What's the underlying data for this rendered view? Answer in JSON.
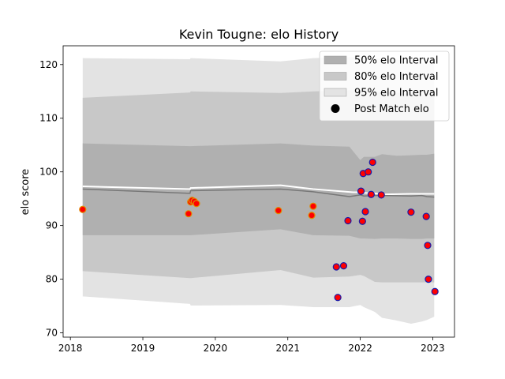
{
  "chart_data": {
    "type": "scatter",
    "title": "Kevin Tougne: elo History",
    "xlabel": "",
    "ylabel": "elo score",
    "xlim": [
      2017.9,
      2023.3
    ],
    "ylim": [
      69.2,
      123.5
    ],
    "x_ticks": [
      2018,
      2019,
      2020,
      2021,
      2022,
      2023
    ],
    "x_tick_labels": [
      "2018",
      "2019",
      "2020",
      "2021",
      "2022",
      "2023"
    ],
    "y_ticks": [
      70,
      80,
      90,
      100,
      110,
      120
    ],
    "y_tick_labels": [
      "70",
      "80",
      "90",
      "100",
      "110",
      "120"
    ],
    "grid": false,
    "legend_position": "top-right",
    "legend": [
      {
        "label": "50% elo Interval",
        "kind": "patch",
        "color": "#b0b0b0"
      },
      {
        "label": "80% elo Interval",
        "kind": "patch",
        "color": "#c8c8c8"
      },
      {
        "label": "95% elo Interval",
        "kind": "patch",
        "color": "#e3e3e3"
      },
      {
        "label": "Post Match elo",
        "kind": "marker",
        "color": "#000000"
      }
    ],
    "bands": [
      {
        "name": "95% elo Interval",
        "color": "#e3e3e3",
        "x": [
          2018.17,
          2019.65,
          2019.66,
          2020.9,
          2021.35,
          2021.85,
          2022.0,
          2022.05,
          2022.2,
          2022.3,
          2022.5,
          2022.7,
          2022.85,
          2022.92,
          2023.02
        ],
        "upper": [
          121.2,
          121.0,
          121.2,
          120.6,
          121.2,
          121.4,
          121.4,
          121.4,
          121.2,
          121.0,
          121.0,
          120.4,
          120.2,
          120.2,
          120.4
        ],
        "lower": [
          76.8,
          75.4,
          75.1,
          75.2,
          74.8,
          74.8,
          75.2,
          74.8,
          73.9,
          72.8,
          72.3,
          71.7,
          72.1,
          72.4,
          73.0
        ]
      },
      {
        "name": "80% elo Interval",
        "color": "#c8c8c8",
        "x": [
          2018.17,
          2019.65,
          2019.66,
          2020.9,
          2021.35,
          2021.85,
          2022.0,
          2022.05,
          2022.2,
          2022.3,
          2022.5,
          2022.7,
          2022.85,
          2022.92,
          2023.02
        ],
        "upper": [
          113.8,
          114.8,
          115.0,
          114.7,
          115.0,
          115.2,
          115.2,
          115.1,
          115.0,
          114.7,
          114.7,
          114.5,
          114.3,
          114.3,
          114.4
        ],
        "lower": [
          81.5,
          80.2,
          80.2,
          81.7,
          80.3,
          80.5,
          80.8,
          80.6,
          79.5,
          79.4,
          79.4,
          79.4,
          79.4,
          79.4,
          79.4
        ]
      },
      {
        "name": "50% elo Interval",
        "color": "#b0b0b0",
        "x": [
          2018.17,
          2019.65,
          2019.66,
          2020.9,
          2021.35,
          2021.85,
          2022.0,
          2022.05,
          2022.2,
          2022.3,
          2022.5,
          2022.7,
          2022.85,
          2022.92,
          2023.02
        ],
        "upper": [
          105.3,
          104.8,
          104.8,
          105.3,
          104.9,
          104.7,
          102.2,
          102.8,
          102.8,
          103.3,
          103.0,
          103.1,
          103.2,
          103.2,
          103.4
        ],
        "lower": [
          88.2,
          88.2,
          88.2,
          89.3,
          88.2,
          88.1,
          87.6,
          87.6,
          87.5,
          87.6,
          87.6,
          87.5,
          87.5,
          87.6,
          87.6
        ]
      }
    ],
    "lines": [
      {
        "name": "upper",
        "color": "#ffffff",
        "width": 2,
        "x": [
          2018.17,
          2019.65,
          2019.66,
          2020.9,
          2021.35,
          2021.9,
          2022.0,
          2022.05,
          2022.2,
          2022.3,
          2022.7,
          2022.85,
          2022.92,
          2023.02
        ],
        "y": [
          97.3,
          96.8,
          97.0,
          97.5,
          96.8,
          96.2,
          96.2,
          96.1,
          96.0,
          95.8,
          95.9,
          95.9,
          95.9,
          95.9
        ]
      },
      {
        "name": "mean",
        "color": "#777777",
        "width": 1.5,
        "x": [
          2018.17,
          2019.65,
          2019.66,
          2020.9,
          2021.35,
          2021.85,
          2022.0,
          2022.05,
          2022.2,
          2022.3,
          2022.7,
          2022.85,
          2022.92,
          2023.02
        ],
        "y": [
          96.8,
          96.0,
          96.5,
          96.8,
          96.3,
          95.4,
          95.7,
          95.5,
          95.6,
          95.6,
          95.5,
          95.6,
          95.4,
          95.3
        ]
      }
    ],
    "series": [
      {
        "name": "Post Match elo",
        "fill": "#ff0000",
        "stroke": "#e08a00",
        "x": [
          2018.17,
          2019.63,
          2019.66,
          2019.68,
          2019.71,
          2019.74,
          2020.87,
          2021.33,
          2021.35
        ],
        "y": [
          93.0,
          92.2,
          94.4,
          94.7,
          94.5,
          94.1,
          92.8,
          91.9,
          93.6
        ]
      },
      {
        "name": "Post Match elo",
        "fill": "#ff0000",
        "stroke": "#1a1aa8",
        "x": [
          2021.67,
          2021.69,
          2021.77,
          2021.83,
          2022.01,
          2022.03,
          2022.04,
          2022.07,
          2022.11,
          2022.15,
          2022.17,
          2022.29,
          2022.7,
          2022.91,
          2022.93,
          2022.94,
          2023.03
        ],
        "y": [
          82.3,
          76.6,
          82.5,
          90.9,
          96.4,
          90.8,
          99.7,
          92.6,
          100.0,
          95.8,
          101.8,
          95.7,
          92.5,
          91.7,
          86.3,
          80.0,
          77.7
        ]
      }
    ]
  }
}
